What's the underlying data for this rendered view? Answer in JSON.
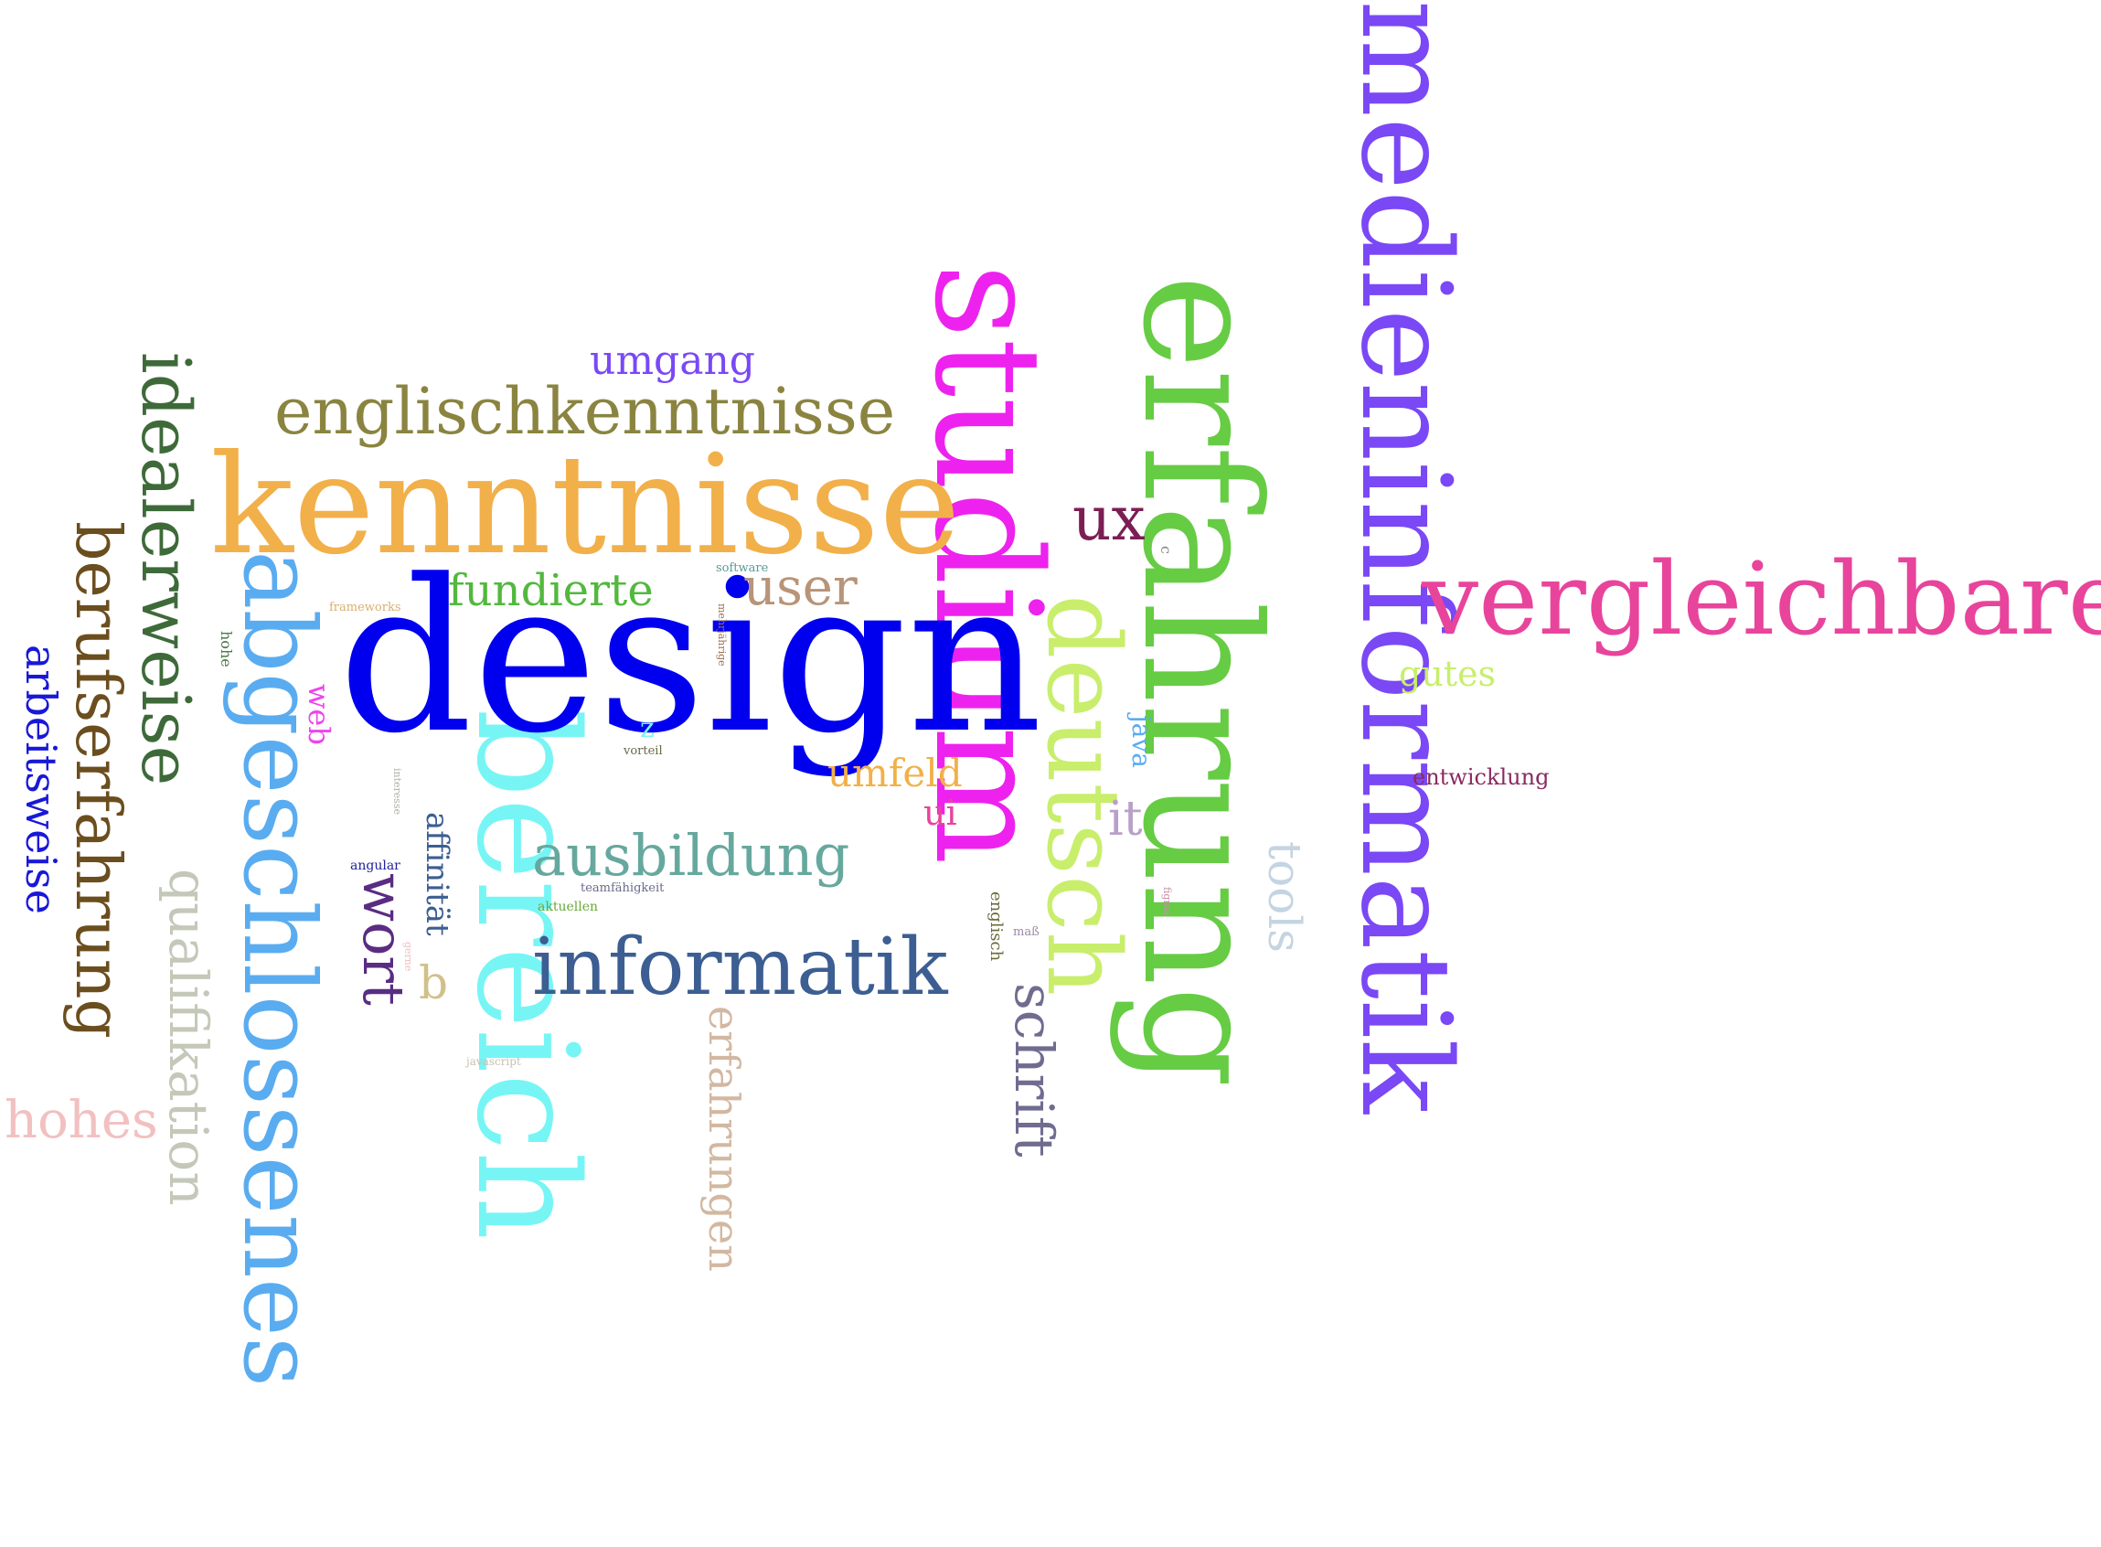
{
  "words": {
    "medieninformatik": {
      "text": "medieninformatik",
      "color": "#7a48f5"
    },
    "design": {
      "text": "design",
      "color": "#0000ee"
    },
    "erfahrung": {
      "text": "erfahrung",
      "color": "#66cc44"
    },
    "studium": {
      "text": "studium",
      "color": "#ee22ee"
    },
    "kenntnisse": {
      "text": "kenntnisse",
      "color": "#f2b04a"
    },
    "bereich": {
      "text": "bereich",
      "color": "#77f5f5"
    },
    "abgeschlossenes": {
      "text": "abgeschlossenes",
      "color": "#5aacf0"
    },
    "vergleichbare": {
      "text": "vergleichbare",
      "color": "#e8449c"
    },
    "deutsch": {
      "text": "deutsch",
      "color": "#c8ee6c"
    },
    "informatik": {
      "text": "informatik",
      "color": "#3c5e92"
    },
    "englischkenntnisse": {
      "text": "englischkenntnisse",
      "color": "#8a8440"
    },
    "idealerweise": {
      "text": "idealerweise",
      "color": "#3e6a3a"
    },
    "berufserfahrung": {
      "text": "berufserfahrung",
      "color": "#6b4e1e"
    },
    "ausbildung": {
      "text": "ausbildung",
      "color": "#66a89e"
    },
    "ux": {
      "text": "ux",
      "color": "#7c1e54"
    },
    "qualifikation": {
      "text": "qualifikation",
      "color": "#c4c8b8"
    },
    "wort": {
      "text": "wort",
      "color": "#5a2c82"
    },
    "schrift": {
      "text": "schrift",
      "color": "#706c90"
    },
    "hohes": {
      "text": "hohes",
      "color": "#f2c0c0"
    },
    "user": {
      "text": "user",
      "color": "#b89478"
    },
    "fundierte": {
      "text": "fundierte",
      "color": "#52b83e"
    },
    "tools": {
      "text": "tools",
      "color": "#c4d4e2"
    },
    "erfahrungen": {
      "text": "erfahrungen",
      "color": "#d2b8a2"
    },
    "arbeitsweise": {
      "text": "arbeitsweise",
      "color": "#1818d8"
    },
    "umgang": {
      "text": "umgang",
      "color": "#7a48f5"
    },
    "umfeld": {
      "text": "umfeld",
      "color": "#f2b04a"
    },
    "gutes": {
      "text": "gutes",
      "color": "#c8ee6c"
    },
    "it": {
      "text": "it",
      "color": "#b8a0c8"
    },
    "ui": {
      "text": "ui",
      "color": "#e8449c"
    },
    "b": {
      "text": "b",
      "color": "#d2c08a"
    },
    "affinitaet": {
      "text": "affinität",
      "color": "#3c5e92"
    },
    "java": {
      "text": "java",
      "color": "#5aacf0"
    },
    "web": {
      "text": "web",
      "color": "#ee44ee"
    },
    "z": {
      "text": "z",
      "color": "#77f5f5"
    },
    "entwicklung": {
      "text": "entwicklung",
      "color": "#8a2a60"
    },
    "englisch": {
      "text": "englisch",
      "color": "#6a6a3a"
    },
    "hohe": {
      "text": "hohe",
      "color": "#4a7a4a"
    },
    "frameworks": {
      "text": "frameworks",
      "color": "#d8b070"
    },
    "software": {
      "text": "software",
      "color": "#5a9a9a"
    },
    "mehrjaehrige": {
      "text": "mehrjährige",
      "color": "#a07050"
    },
    "vorteil": {
      "text": "vorteil",
      "color": "#6a6a4a"
    },
    "interesse": {
      "text": "interesse",
      "color": "#b0b0a8"
    },
    "teamfaehigkeit": {
      "text": "teamfähigkeit",
      "color": "#6a6a8a"
    },
    "aktuellen": {
      "text": "aktuellen",
      "color": "#6aa83a"
    },
    "angular": {
      "text": "angular",
      "color": "#2020a0"
    },
    "gerne": {
      "text": "gerne",
      "color": "#f0c0c0"
    },
    "mass": {
      "text": "maß",
      "color": "#9a88a8"
    },
    "figma": {
      "text": "figma",
      "color": "#c890a8"
    },
    "c": {
      "text": "c",
      "color": "#8a8a8a"
    },
    "javascript": {
      "text": "javascript",
      "color": "#c8c0b0"
    }
  }
}
